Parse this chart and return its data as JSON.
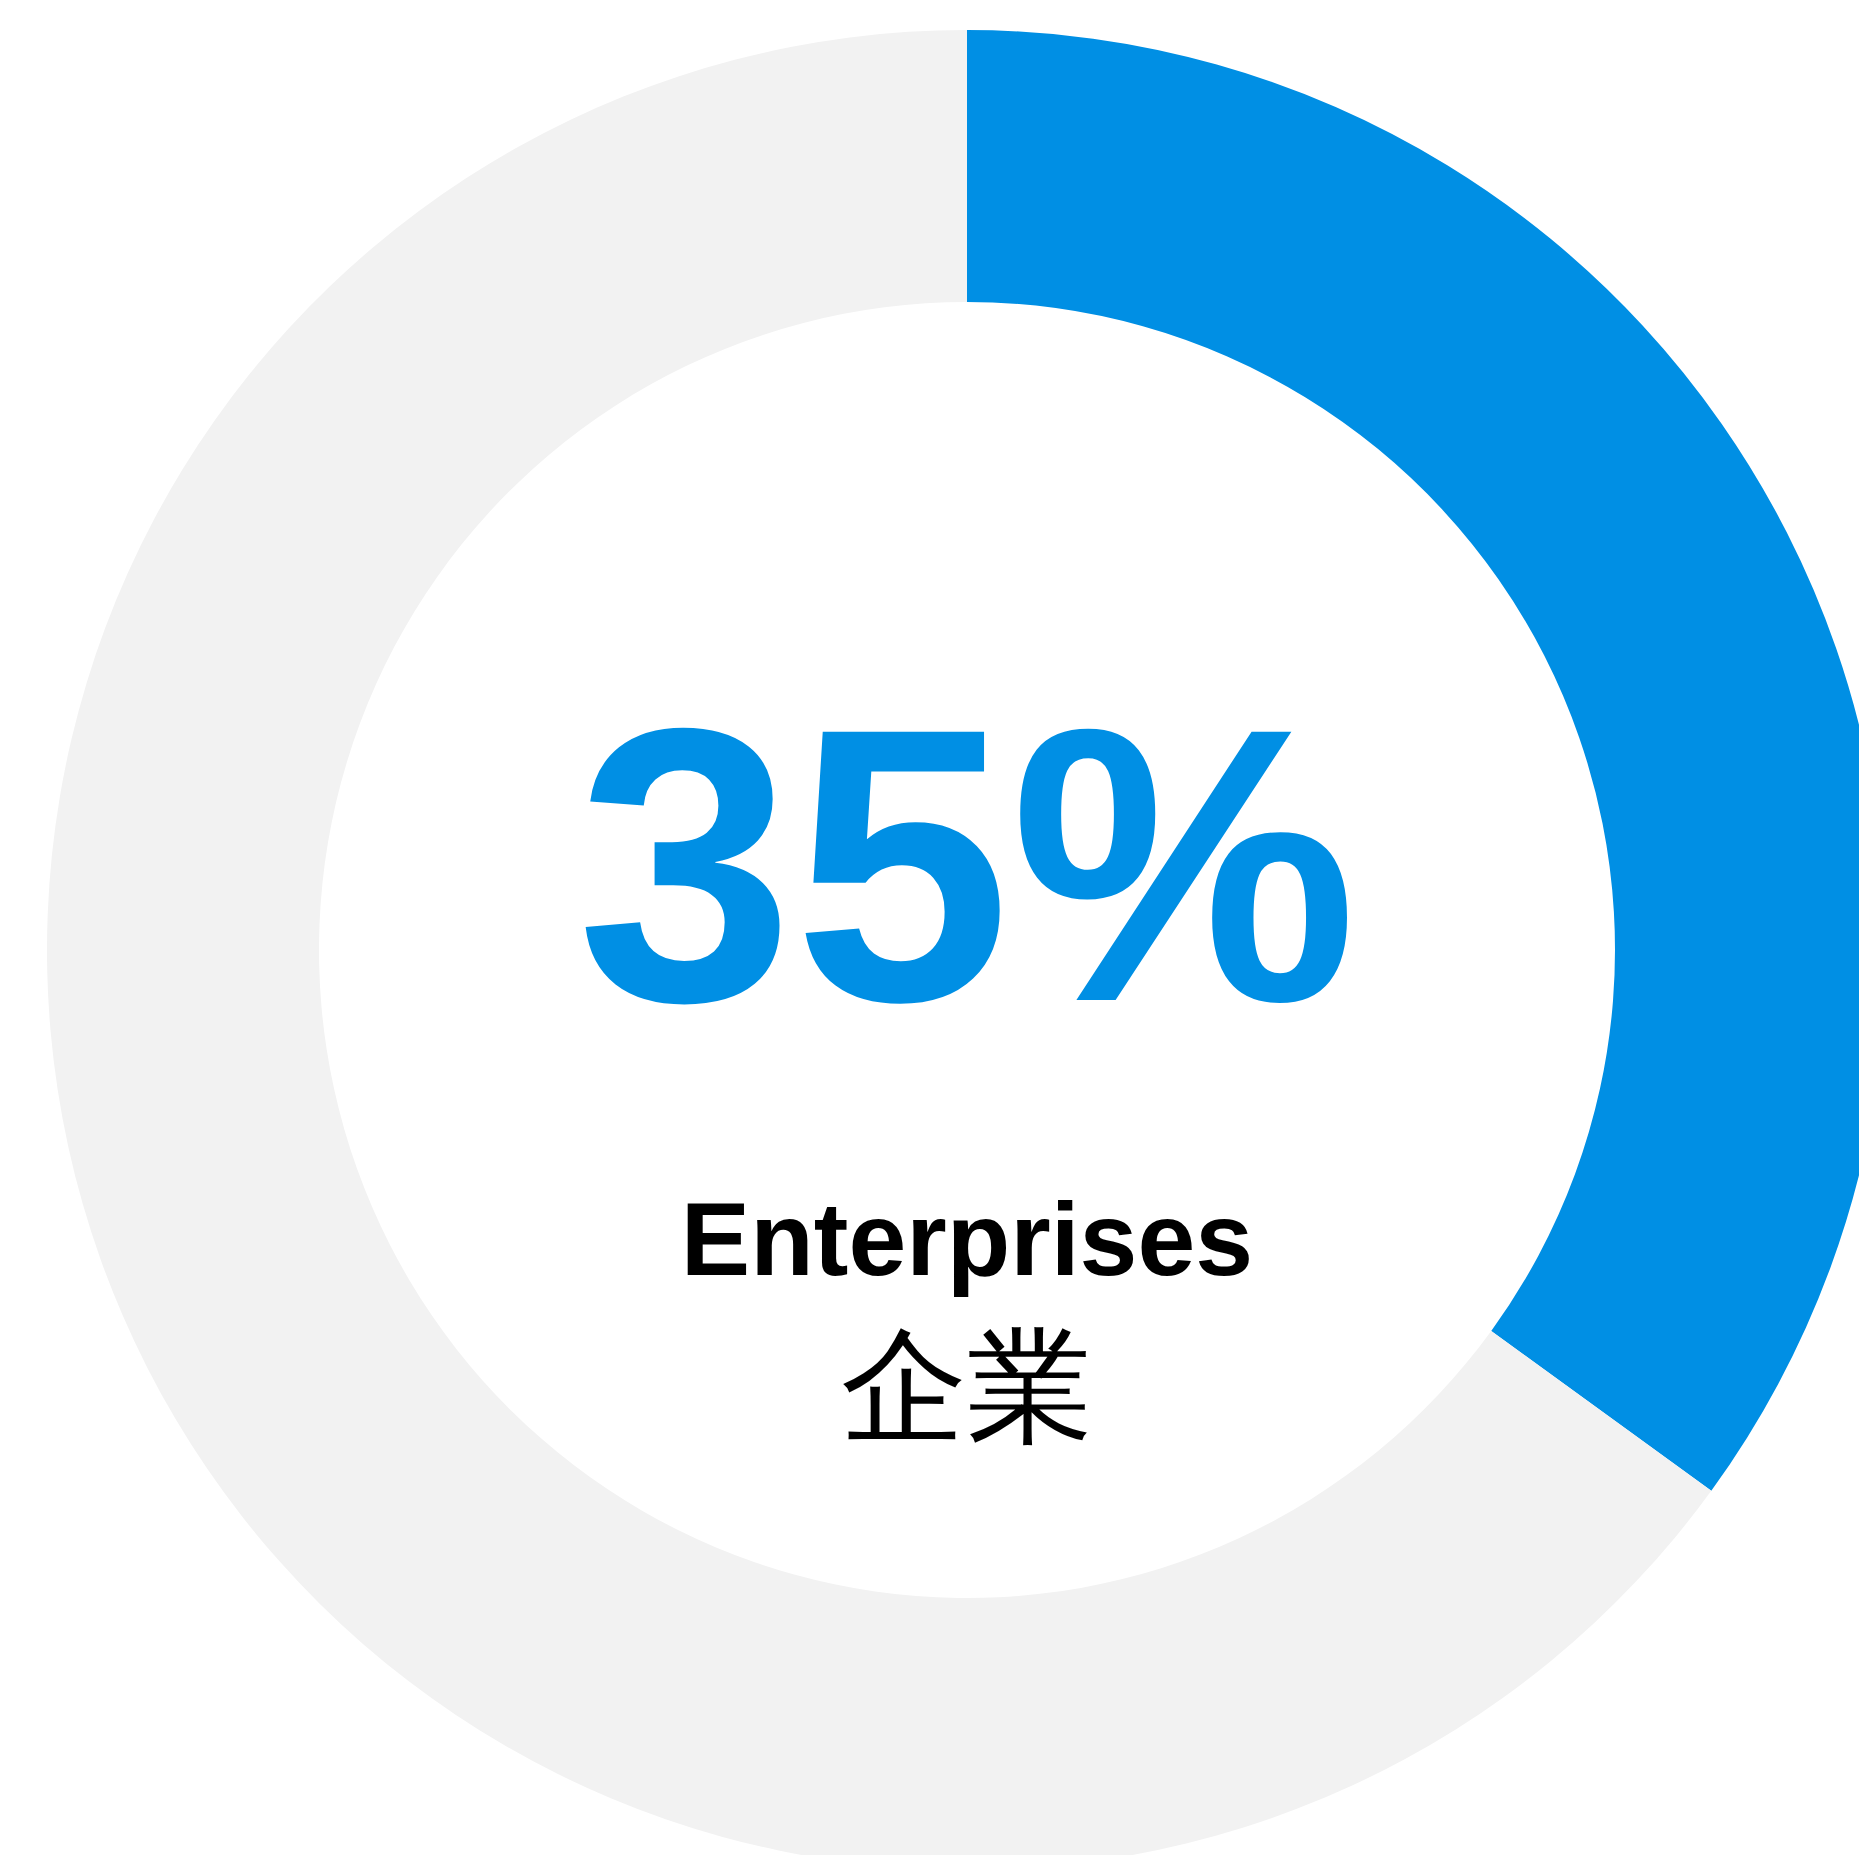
{
  "chart_data": {
    "type": "donut",
    "title": "Enterprises",
    "subtitle": "企業",
    "categories": [
      null,
      null
    ],
    "values": [
      35,
      65
    ],
    "colors": [
      "#008fe4",
      "#f2f2f2"
    ],
    "value_labels": [
      "35%",
      null
    ]
  }
}
